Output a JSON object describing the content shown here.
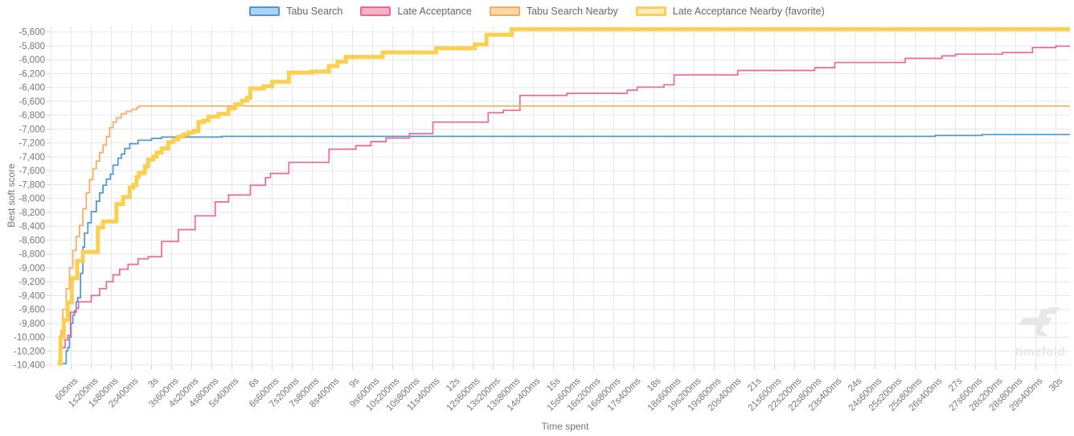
{
  "watermark": {
    "text": "timefold"
  },
  "axes": {
    "x_title": "Time spent",
    "y_title": "Best soft score",
    "x_tick_labels": [
      "600ms",
      "1s200ms",
      "1s800ms",
      "2s400ms",
      "3s",
      "3s600ms",
      "4s200ms",
      "4s800ms",
      "5s400ms",
      "6s",
      "6s600ms",
      "7s200ms",
      "7s800ms",
      "8s400ms",
      "9s",
      "9s600ms",
      "10s200ms",
      "10s800ms",
      "11s400ms",
      "12s",
      "12s600ms",
      "13s200ms",
      "13s800ms",
      "14s400ms",
      "15s",
      "15s600ms",
      "16s200ms",
      "16s800ms",
      "17s400ms",
      "18s",
      "18s600ms",
      "19s200ms",
      "19s800ms",
      "20s400ms",
      "21s",
      "21s600ms",
      "22s200ms",
      "22s800ms",
      "23s400ms",
      "24s",
      "24s600ms",
      "25s200ms",
      "25s800ms",
      "26s400ms",
      "27s",
      "27s600ms",
      "28s200ms",
      "28s800ms",
      "29s400ms",
      "30s"
    ],
    "y_tick_labels": [
      "-5,600",
      "-5,800",
      "-6,000",
      "-6,200",
      "-6,400",
      "-6,600",
      "-6,800",
      "-7,000",
      "-7,200",
      "-7,400",
      "-7,600",
      "-7,800",
      "-8,000",
      "-8,200",
      "-8,400",
      "-8,600",
      "-8,800",
      "-9,000",
      "-9,200",
      "-9,400",
      "-9,600",
      "-9,800",
      "-10,000",
      "-10,200",
      "-10,400"
    ]
  },
  "style": {
    "grid_color": "#e7e7e7",
    "tick_color": "#d4d4d4",
    "tick_label_color": "#777777",
    "legend_text_color": "#666666"
  },
  "chart_data": {
    "type": "line",
    "step": true,
    "title": "",
    "xlabel": "Time spent",
    "ylabel": "Best soft score",
    "x_unit_seconds": true,
    "xlim": [
      0,
      30.4
    ],
    "ylim": [
      -10400,
      -5600
    ],
    "y_tick_step": 200,
    "x_tick_step_ms": 600,
    "grid": true,
    "legend_position": "top",
    "series": [
      {
        "name": "Tabu Search",
        "color": "#4b97d4",
        "legend_fill": "#abd4f2",
        "width": 1.7,
        "favorite": false,
        "points": [
          [
            0.35,
            -10380
          ],
          [
            0.45,
            -10200
          ],
          [
            0.5,
            -10150
          ],
          [
            0.55,
            -10000
          ],
          [
            0.6,
            -9800
          ],
          [
            0.65,
            -9680
          ],
          [
            0.7,
            -9620
          ],
          [
            0.75,
            -9490
          ],
          [
            0.8,
            -9430
          ],
          [
            0.88,
            -9080
          ],
          [
            0.95,
            -8700
          ],
          [
            1.0,
            -8500
          ],
          [
            1.1,
            -8350
          ],
          [
            1.2,
            -8190
          ],
          [
            1.35,
            -8040
          ],
          [
            1.45,
            -7920
          ],
          [
            1.55,
            -7810
          ],
          [
            1.65,
            -7720
          ],
          [
            1.77,
            -7650
          ],
          [
            1.85,
            -7520
          ],
          [
            2.0,
            -7420
          ],
          [
            2.1,
            -7360
          ],
          [
            2.2,
            -7280
          ],
          [
            2.35,
            -7210
          ],
          [
            2.6,
            -7160
          ],
          [
            3.0,
            -7135
          ],
          [
            3.3,
            -7115
          ],
          [
            5.1,
            -7105
          ],
          [
            26.4,
            -7092
          ],
          [
            27.8,
            -7080
          ],
          [
            30,
            -7080
          ]
        ]
      },
      {
        "name": "Late Acceptance",
        "color": "#f0688f",
        "legend_fill": "#f9b1c5",
        "width": 1.7,
        "favorite": false,
        "points": [
          [
            0.2,
            -10380
          ],
          [
            0.3,
            -10150
          ],
          [
            0.42,
            -10040
          ],
          [
            0.5,
            -9975
          ],
          [
            0.58,
            -9640
          ],
          [
            0.75,
            -9585
          ],
          [
            0.82,
            -9490
          ],
          [
            1.2,
            -9400
          ],
          [
            1.45,
            -9300
          ],
          [
            1.65,
            -9200
          ],
          [
            1.85,
            -9100
          ],
          [
            2.05,
            -9020
          ],
          [
            2.3,
            -8950
          ],
          [
            2.6,
            -8870
          ],
          [
            2.9,
            -8840
          ],
          [
            3.3,
            -8620
          ],
          [
            3.8,
            -8450
          ],
          [
            4.3,
            -8250
          ],
          [
            4.9,
            -8050
          ],
          [
            5.3,
            -7950
          ],
          [
            5.95,
            -7810
          ],
          [
            6.4,
            -7700
          ],
          [
            6.55,
            -7640
          ],
          [
            7.1,
            -7480
          ],
          [
            8.3,
            -7290
          ],
          [
            9.1,
            -7240
          ],
          [
            9.55,
            -7180
          ],
          [
            10.0,
            -7130
          ],
          [
            10.7,
            -7065
          ],
          [
            11.4,
            -6900
          ],
          [
            13.05,
            -6765
          ],
          [
            13.5,
            -6730
          ],
          [
            14.0,
            -6515
          ],
          [
            15.4,
            -6485
          ],
          [
            17.2,
            -6440
          ],
          [
            17.5,
            -6395
          ],
          [
            18.3,
            -6360
          ],
          [
            18.6,
            -6220
          ],
          [
            20.5,
            -6155
          ],
          [
            22.8,
            -6115
          ],
          [
            23.4,
            -6040
          ],
          [
            25.5,
            -5980
          ],
          [
            26.6,
            -5945
          ],
          [
            27.0,
            -5920
          ],
          [
            28.4,
            -5898
          ],
          [
            29.3,
            -5825
          ],
          [
            30,
            -5805
          ]
        ]
      },
      {
        "name": "Tabu Search Nearby",
        "color": "#f9ab60",
        "legend_fill": "#fcd7a8",
        "width": 1.7,
        "favorite": false,
        "points": [
          [
            0.2,
            -10380
          ],
          [
            0.25,
            -10050
          ],
          [
            0.3,
            -9900
          ],
          [
            0.35,
            -9600
          ],
          [
            0.45,
            -9300
          ],
          [
            0.55,
            -9000
          ],
          [
            0.65,
            -8750
          ],
          [
            0.75,
            -8550
          ],
          [
            0.85,
            -8390
          ],
          [
            0.95,
            -8150
          ],
          [
            1.05,
            -7920
          ],
          [
            1.15,
            -7730
          ],
          [
            1.25,
            -7570
          ],
          [
            1.35,
            -7460
          ],
          [
            1.45,
            -7340
          ],
          [
            1.55,
            -7230
          ],
          [
            1.65,
            -7110
          ],
          [
            1.75,
            -6980
          ],
          [
            1.85,
            -6900
          ],
          [
            1.95,
            -6840
          ],
          [
            2.1,
            -6780
          ],
          [
            2.25,
            -6745
          ],
          [
            2.4,
            -6720
          ],
          [
            2.55,
            -6690
          ],
          [
            2.62,
            -6668
          ],
          [
            30,
            -6668
          ]
        ]
      },
      {
        "name": "Late Acceptance Nearby (favorite)",
        "color": "#fbcf50",
        "legend_fill": "#fdedc3",
        "width": 5,
        "favorite": true,
        "points": [
          [
            0.2,
            -10380
          ],
          [
            0.28,
            -10000
          ],
          [
            0.38,
            -9750
          ],
          [
            0.5,
            -9500
          ],
          [
            0.62,
            -9150
          ],
          [
            0.78,
            -8900
          ],
          [
            0.95,
            -8770
          ],
          [
            1.4,
            -8420
          ],
          [
            1.55,
            -8330
          ],
          [
            1.95,
            -8080
          ],
          [
            2.15,
            -7980
          ],
          [
            2.35,
            -7845
          ],
          [
            2.45,
            -7805
          ],
          [
            2.55,
            -7690
          ],
          [
            2.62,
            -7632
          ],
          [
            2.8,
            -7536
          ],
          [
            2.9,
            -7440
          ],
          [
            3.05,
            -7400
          ],
          [
            3.15,
            -7340
          ],
          [
            3.3,
            -7280
          ],
          [
            3.5,
            -7190
          ],
          [
            3.65,
            -7150
          ],
          [
            3.8,
            -7110
          ],
          [
            3.95,
            -7080
          ],
          [
            4.1,
            -7050
          ],
          [
            4.25,
            -7030
          ],
          [
            4.4,
            -6900
          ],
          [
            4.55,
            -6878
          ],
          [
            4.7,
            -6820
          ],
          [
            5.0,
            -6780
          ],
          [
            5.3,
            -6700
          ],
          [
            5.5,
            -6645
          ],
          [
            5.7,
            -6590
          ],
          [
            5.85,
            -6550
          ],
          [
            5.95,
            -6415
          ],
          [
            6.35,
            -6384
          ],
          [
            6.6,
            -6320
          ],
          [
            7.1,
            -6185
          ],
          [
            7.8,
            -6170
          ],
          [
            8.3,
            -6090
          ],
          [
            8.55,
            -6030
          ],
          [
            8.8,
            -5960
          ],
          [
            9.9,
            -5895
          ],
          [
            11.5,
            -5835
          ],
          [
            12.65,
            -5780
          ],
          [
            13.0,
            -5640
          ],
          [
            13.75,
            -5560
          ],
          [
            30,
            -5560
          ]
        ]
      }
    ]
  }
}
